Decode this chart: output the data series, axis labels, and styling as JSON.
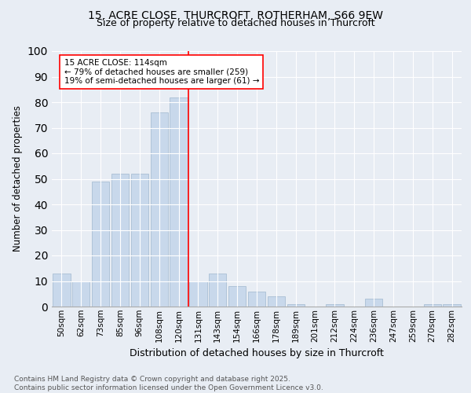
{
  "title1": "15, ACRE CLOSE, THURCROFT, ROTHERHAM, S66 9EW",
  "title2": "Size of property relative to detached houses in Thurcroft",
  "xlabel": "Distribution of detached houses by size in Thurcroft",
  "ylabel": "Number of detached properties",
  "categories": [
    "50sqm",
    "62sqm",
    "73sqm",
    "85sqm",
    "96sqm",
    "108sqm",
    "120sqm",
    "131sqm",
    "143sqm",
    "154sqm",
    "166sqm",
    "178sqm",
    "189sqm",
    "201sqm",
    "212sqm",
    "224sqm",
    "236sqm",
    "247sqm",
    "259sqm",
    "270sqm",
    "282sqm"
  ],
  "values": [
    13,
    10,
    49,
    52,
    52,
    76,
    82,
    10,
    13,
    8,
    6,
    4,
    1,
    0,
    1,
    0,
    3,
    0,
    0,
    1,
    1
  ],
  "bar_color": "#c8d8eb",
  "bar_edge_color": "#a0b8ce",
  "background_color": "#e8edf4",
  "plot_bg_color": "#e8edf4",
  "vline_color": "red",
  "vline_x": 6.5,
  "annotation_text": "15 ACRE CLOSE: 114sqm\n← 79% of detached houses are smaller (259)\n19% of semi-detached houses are larger (61) →",
  "annotation_box_color": "white",
  "annotation_box_edge": "red",
  "ylim": [
    0,
    100
  ],
  "yticks": [
    0,
    10,
    20,
    30,
    40,
    50,
    60,
    70,
    80,
    90,
    100
  ],
  "footer": "Contains HM Land Registry data © Crown copyright and database right 2025.\nContains public sector information licensed under the Open Government Licence v3.0."
}
